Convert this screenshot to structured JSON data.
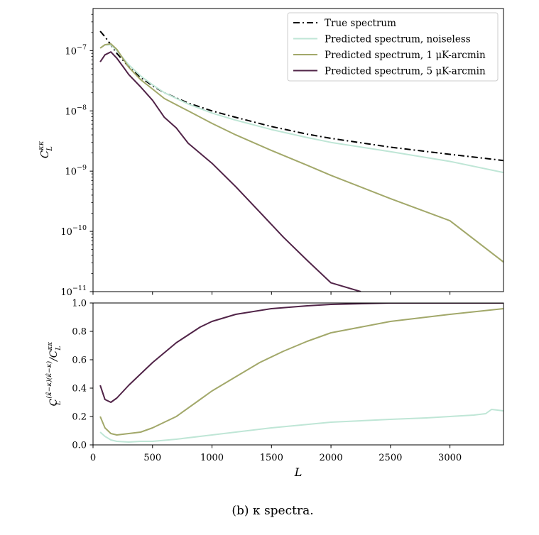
{
  "caption": "(b) κ spectra.",
  "colors": {
    "true": "#000000",
    "noiseless": "#bfe6d6",
    "one": "#a2a86a",
    "five": "#512448"
  },
  "chart_data": [
    {
      "type": "line",
      "ylabel": "C_L^{κκ}",
      "xlabel": "",
      "yscale": "log",
      "xlim": [
        0,
        3450
      ],
      "ylim": [
        1e-11,
        5e-07
      ],
      "yticks": [
        1e-11,
        1e-10,
        1e-09,
        1e-08,
        1e-07
      ],
      "ytick_labels": [
        {
          "base": "10",
          "exp": "−11"
        },
        {
          "base": "10",
          "exp": "−10"
        },
        {
          "base": "10",
          "exp": "−9"
        },
        {
          "base": "10",
          "exp": "−8"
        },
        {
          "base": "10",
          "exp": "−7"
        }
      ],
      "legend_position": "top-right",
      "series": [
        {
          "name": "True spectrum",
          "color_key": "true",
          "style": "dashdot",
          "x": [
            60,
            100,
            150,
            200,
            300,
            400,
            500,
            600,
            800,
            1000,
            1200,
            1500,
            1800,
            2000,
            2500,
            3000,
            3450
          ],
          "y": [
            2.1e-07,
            1.7e-07,
            1.25e-07,
            9e-08,
            5.4e-08,
            3.6e-08,
            2.6e-08,
            2e-08,
            1.35e-08,
            1e-08,
            7.8e-09,
            5.5e-09,
            4.1e-09,
            3.5e-09,
            2.5e-09,
            1.9e-09,
            1.5e-09
          ]
        },
        {
          "name": "Predicted spectrum, noiseless",
          "color_key": "noiseless",
          "style": "solid",
          "x": [
            60,
            100,
            150,
            200,
            300,
            400,
            500,
            600,
            800,
            1000,
            1200,
            1500,
            1800,
            2000,
            2500,
            3000,
            3450
          ],
          "y": [
            1.1e-07,
            1.25e-07,
            1.25e-07,
            1e-07,
            5.8e-08,
            3.8e-08,
            2.7e-08,
            2e-08,
            1.3e-08,
            9.2e-09,
            7e-09,
            4.9e-09,
            3.6e-09,
            3e-09,
            2.1e-09,
            1.45e-09,
            9.5e-10
          ]
        },
        {
          "name": "Predicted spectrum, 1 μK-arcmin",
          "color_key": "one",
          "style": "solid",
          "x": [
            60,
            100,
            150,
            200,
            300,
            400,
            500,
            600,
            800,
            1000,
            1200,
            1500,
            1800,
            2000,
            2500,
            3000,
            3450
          ],
          "y": [
            1.1e-07,
            1.25e-07,
            1.3e-07,
            1.05e-07,
            5.3e-08,
            3.3e-08,
            2.3e-08,
            1.6e-08,
            1e-08,
            6.2e-09,
            4e-09,
            2.2e-09,
            1.25e-09,
            8.5e-10,
            3.5e-10,
            1.5e-10,
            3.1e-11
          ]
        },
        {
          "name": "Predicted spectrum, 5 μK-arcmin",
          "color_key": "five",
          "style": "solid",
          "x": [
            60,
            100,
            150,
            200,
            250,
            300,
            400,
            500,
            600,
            700,
            800,
            1000,
            1200,
            1400,
            1600,
            1800,
            2000,
            2250
          ],
          "y": [
            6.5e-08,
            8.5e-08,
            9.5e-08,
            7.5e-08,
            5.5e-08,
            4e-08,
            2.5e-08,
            1.5e-08,
            7.8e-09,
            5.2e-09,
            2.9e-09,
            1.35e-09,
            5.5e-10,
            2.1e-10,
            8e-11,
            3.3e-11,
            1.4e-11,
            1e-11
          ]
        }
      ]
    },
    {
      "type": "line",
      "xlabel": "L",
      "ylabel": "C_L^{(κ̂−κ)(κ̂−κ)} / C_L^{κκ}",
      "yscale": "linear",
      "xlim": [
        0,
        3450
      ],
      "ylim": [
        0.0,
        1.0
      ],
      "xticks": [
        0,
        500,
        1000,
        1500,
        2000,
        2500,
        3000
      ],
      "xtick_labels": [
        "0",
        "500",
        "1000",
        "1500",
        "2000",
        "2500",
        "3000"
      ],
      "yticks": [
        0.0,
        0.2,
        0.4,
        0.6,
        0.8,
        1.0
      ],
      "ytick_labels": [
        "0.0",
        "0.2",
        "0.4",
        "0.6",
        "0.8",
        "1.0"
      ],
      "series": [
        {
          "name": "Predicted spectrum, noiseless",
          "color_key": "noiseless",
          "x": [
            60,
            100,
            150,
            200,
            300,
            400,
            500,
            700,
            1000,
            1500,
            2000,
            2500,
            2800,
            3000,
            3200,
            3300,
            3350,
            3450
          ],
          "y": [
            0.09,
            0.06,
            0.035,
            0.025,
            0.02,
            0.025,
            0.025,
            0.04,
            0.07,
            0.12,
            0.16,
            0.18,
            0.19,
            0.2,
            0.21,
            0.22,
            0.25,
            0.24
          ]
        },
        {
          "name": "Predicted spectrum, 1 μK-arcmin",
          "color_key": "one",
          "x": [
            60,
            100,
            150,
            200,
            300,
            400,
            500,
            700,
            900,
            1000,
            1200,
            1400,
            1600,
            1800,
            2000,
            2500,
            3000,
            3450
          ],
          "y": [
            0.2,
            0.12,
            0.08,
            0.07,
            0.08,
            0.09,
            0.12,
            0.2,
            0.32,
            0.38,
            0.48,
            0.58,
            0.66,
            0.73,
            0.79,
            0.87,
            0.92,
            0.96
          ]
        },
        {
          "name": "Predicted spectrum, 5 μK-arcmin",
          "color_key": "five",
          "x": [
            60,
            100,
            150,
            200,
            300,
            400,
            500,
            700,
            900,
            1000,
            1200,
            1500,
            1800,
            2000,
            2500,
            3000,
            3450
          ],
          "y": [
            0.42,
            0.32,
            0.3,
            0.33,
            0.42,
            0.5,
            0.58,
            0.72,
            0.83,
            0.87,
            0.92,
            0.96,
            0.98,
            0.99,
            1.0,
            1.0,
            1.0
          ]
        }
      ]
    }
  ]
}
